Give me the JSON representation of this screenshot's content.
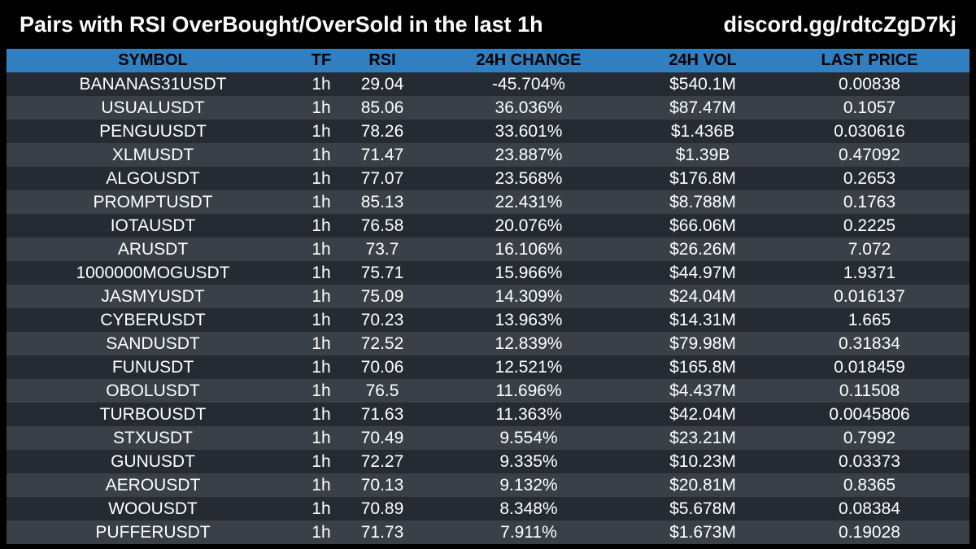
{
  "header": {
    "title": "Pairs with RSI OverBought/OverSold in the last 1h",
    "link": "discord.gg/rdtcZgD7kj"
  },
  "table": {
    "columns": [
      "SYMBOL",
      "TF",
      "RSI",
      "24H CHANGE",
      "24H VOL",
      "LAST PRICE"
    ],
    "rows": [
      {
        "symbol": "BANANAS31USDT",
        "tf": "1h",
        "rsi": "29.04",
        "change": "-45.704%",
        "vol": "$540.1M",
        "price": "0.00838"
      },
      {
        "symbol": "USUALUSDT",
        "tf": "1h",
        "rsi": "85.06",
        "change": "36.036%",
        "vol": "$87.47M",
        "price": "0.1057"
      },
      {
        "symbol": "PENGUUSDT",
        "tf": "1h",
        "rsi": "78.26",
        "change": "33.601%",
        "vol": "$1.436B",
        "price": "0.030616"
      },
      {
        "symbol": "XLMUSDT",
        "tf": "1h",
        "rsi": "71.47",
        "change": "23.887%",
        "vol": "$1.39B",
        "price": "0.47092"
      },
      {
        "symbol": "ALGOUSDT",
        "tf": "1h",
        "rsi": "77.07",
        "change": "23.568%",
        "vol": "$176.8M",
        "price": "0.2653"
      },
      {
        "symbol": "PROMPTUSDT",
        "tf": "1h",
        "rsi": "85.13",
        "change": "22.431%",
        "vol": "$8.788M",
        "price": "0.1763"
      },
      {
        "symbol": "IOTAUSDT",
        "tf": "1h",
        "rsi": "76.58",
        "change": "20.076%",
        "vol": "$66.06M",
        "price": "0.2225"
      },
      {
        "symbol": "ARUSDT",
        "tf": "1h",
        "rsi": "73.7",
        "change": "16.106%",
        "vol": "$26.26M",
        "price": "7.072"
      },
      {
        "symbol": "1000000MOGUSDT",
        "tf": "1h",
        "rsi": "75.71",
        "change": "15.966%",
        "vol": "$44.97M",
        "price": "1.9371"
      },
      {
        "symbol": "JASMYUSDT",
        "tf": "1h",
        "rsi": "75.09",
        "change": "14.309%",
        "vol": "$24.04M",
        "price": "0.016137"
      },
      {
        "symbol": "CYBERUSDT",
        "tf": "1h",
        "rsi": "70.23",
        "change": "13.963%",
        "vol": "$14.31M",
        "price": "1.665"
      },
      {
        "symbol": "SANDUSDT",
        "tf": "1h",
        "rsi": "72.52",
        "change": "12.839%",
        "vol": "$79.98M",
        "price": "0.31834"
      },
      {
        "symbol": "FUNUSDT",
        "tf": "1h",
        "rsi": "70.06",
        "change": "12.521%",
        "vol": "$165.8M",
        "price": "0.018459"
      },
      {
        "symbol": "OBOLUSDT",
        "tf": "1h",
        "rsi": "76.5",
        "change": "11.696%",
        "vol": "$4.437M",
        "price": "0.11508"
      },
      {
        "symbol": "TURBOUSDT",
        "tf": "1h",
        "rsi": "71.63",
        "change": "11.363%",
        "vol": "$42.04M",
        "price": "0.0045806"
      },
      {
        "symbol": "STXUSDT",
        "tf": "1h",
        "rsi": "70.49",
        "change": "9.554%",
        "vol": "$23.21M",
        "price": "0.7992"
      },
      {
        "symbol": "GUNUSDT",
        "tf": "1h",
        "rsi": "72.27",
        "change": "9.335%",
        "vol": "$10.23M",
        "price": "0.03373"
      },
      {
        "symbol": "AEROUSDT",
        "tf": "1h",
        "rsi": "70.13",
        "change": "9.132%",
        "vol": "$20.81M",
        "price": "0.8365"
      },
      {
        "symbol": "WOOUSDT",
        "tf": "1h",
        "rsi": "70.89",
        "change": "8.348%",
        "vol": "$5.678M",
        "price": "0.08384"
      },
      {
        "symbol": "PUFFERUSDT",
        "tf": "1h",
        "rsi": "71.73",
        "change": "7.911%",
        "vol": "$1.673M",
        "price": "0.19028"
      }
    ]
  },
  "colors": {
    "background": "#000000",
    "header_row": "#2f7fc1",
    "row_dark": "#262b33",
    "row_light": "#3a4047",
    "text": "#ffffff"
  }
}
